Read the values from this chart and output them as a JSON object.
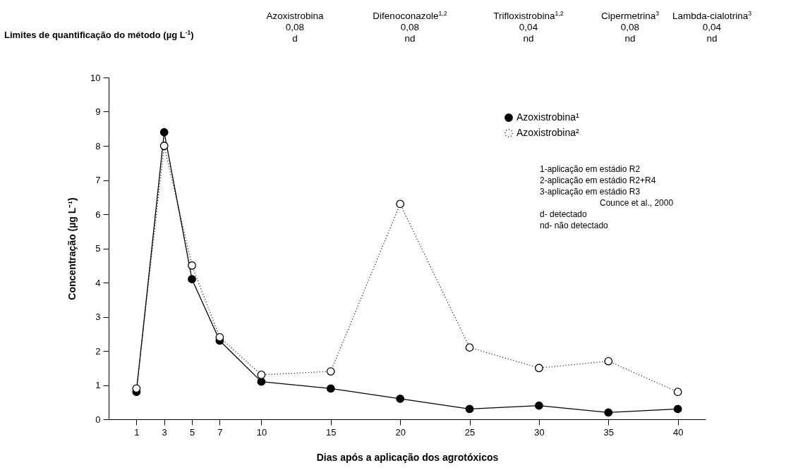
{
  "chart_data": {
    "type": "line",
    "xlabel": "Dias após a aplicação dos agrotóxicos",
    "ylabel": "Concentração (µg L⁻¹)",
    "x": [
      1,
      3,
      5,
      7,
      10,
      15,
      20,
      25,
      30,
      35,
      40
    ],
    "xlim": [
      -1,
      42
    ],
    "xticks": [
      1,
      3,
      5,
      7,
      10,
      15,
      20,
      25,
      30,
      35,
      40
    ],
    "ylim": [
      0,
      10
    ],
    "yticks": [
      0,
      1,
      2,
      3,
      4,
      5,
      6,
      7,
      8,
      9,
      10
    ],
    "grid": false,
    "legend": "top right",
    "marker": "circle",
    "series": [
      {
        "name": "Azoxistrobina¹",
        "color": "#000000",
        "line_style": "solid",
        "values": [
          0.8,
          8.4,
          4.1,
          2.3,
          1.1,
          0.9,
          0.6,
          0.3,
          0.4,
          0.2,
          0.3
        ]
      },
      {
        "name": "Azoxistrobina²",
        "color": "#000000",
        "line_style": "dotted",
        "values": [
          0.9,
          8.0,
          4.5,
          2.4,
          1.3,
          1.4,
          6.3,
          2.1,
          1.5,
          1.7,
          0.8
        ]
      }
    ],
    "annotations": [
      "Limites de quantificação do método (µg L$^{-1}$)",
      "Azoxistrobina\n0,08\nd",
      "Difenoconazole$^{1,2}$\n0,08\nnd",
      "Trifloxistrobina$^{1,2}$\n0,04\nnd",
      "Cipermetrina$^{3}$\n0,08\nnd",
      "Lambda-cialotrina$^{3}$\n0,04\nnd",
      "1-aplicação em estádio R2\n2-aplicação em estádio R2+R4\n3-aplicação em estádio R3\nCounce et al., 2000\nd- detectado\nnd- não detectado"
    ]
  }
}
